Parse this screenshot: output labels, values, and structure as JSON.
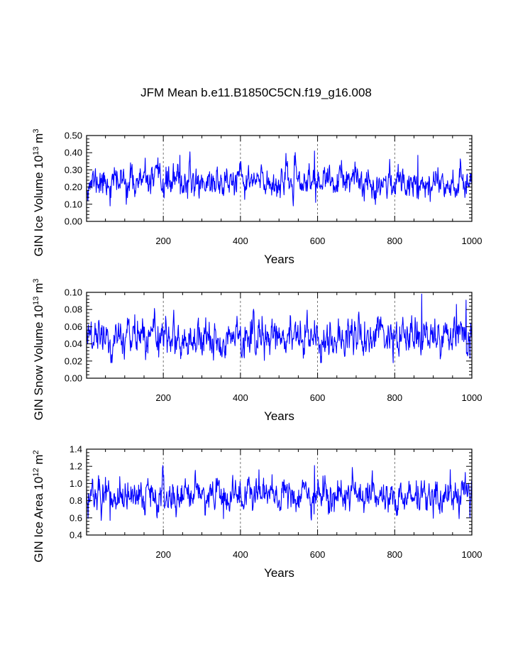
{
  "figure": {
    "title": "JFM Mean b.e11.B1850C5CN.f19_g16.008"
  },
  "chart_data": [
    {
      "type": "line",
      "title": "",
      "xlabel": "Years",
      "ylabel": "GIN Ice Volume 10",
      "ylabel_sup1": "13",
      "ylabel_mid": " m",
      "ylabel_sup2": "3",
      "xlim": [
        1,
        1000
      ],
      "ylim": [
        0.0,
        0.5
      ],
      "x_ticks": [
        200,
        400,
        600,
        800,
        1000
      ],
      "x_tick_labels": [
        "200",
        "400",
        "600",
        "800",
        "1000"
      ],
      "y_ticks": [
        0.0,
        0.1,
        0.2,
        0.3,
        0.4,
        0.5
      ],
      "y_tick_labels": [
        "0.00",
        "0.10",
        "0.20",
        "0.30",
        "0.40",
        "0.50"
      ],
      "grid_x": [
        200,
        400,
        600,
        800
      ],
      "series": [
        {
          "name": "GIN Ice Volume",
          "color": "#0000ff",
          "mean": 0.23,
          "std": 0.045,
          "min": 0.09,
          "max": 0.41,
          "seed": 11,
          "peaks": [
            [
              592,
              0.41
            ],
            [
              243,
              0.385
            ],
            [
              860,
              0.385
            ],
            [
              62,
              0.09
            ],
            [
              537,
              0.09
            ]
          ]
        }
      ]
    },
    {
      "type": "line",
      "title": "",
      "xlabel": "Years",
      "ylabel": "GIN Snow Volume 10",
      "ylabel_sup1": "13",
      "ylabel_mid": " m",
      "ylabel_sup2": "3",
      "xlim": [
        1,
        1000
      ],
      "ylim": [
        0.0,
        0.1
      ],
      "x_ticks": [
        200,
        400,
        600,
        800,
        1000
      ],
      "x_tick_labels": [
        "200",
        "400",
        "600",
        "800",
        "1000"
      ],
      "y_ticks": [
        0.0,
        0.02,
        0.04,
        0.06,
        0.08,
        0.1
      ],
      "y_tick_labels": [
        "0.00",
        "0.02",
        "0.04",
        "0.06",
        "0.08",
        "0.10"
      ],
      "grid_x": [
        200,
        400,
        600,
        800
      ],
      "series": [
        {
          "name": "GIN Snow Volume",
          "color": "#0000ff",
          "mean": 0.048,
          "std": 0.011,
          "min": 0.018,
          "max": 0.098,
          "seed": 29,
          "peaks": [
            [
              870,
              0.098
            ],
            [
              985,
              0.091
            ],
            [
              796,
              0.018
            ],
            [
              960,
              0.086
            ]
          ]
        }
      ]
    },
    {
      "type": "line",
      "title": "",
      "xlabel": "Years",
      "ylabel": "GIN Ice Area 10",
      "ylabel_sup1": "12",
      "ylabel_mid": " m",
      "ylabel_sup2": "2",
      "xlim": [
        1,
        1000
      ],
      "ylim": [
        0.4,
        1.4
      ],
      "x_ticks": [
        200,
        400,
        600,
        800,
        1000
      ],
      "x_tick_labels": [
        "200",
        "400",
        "600",
        "800",
        "1000"
      ],
      "y_ticks": [
        0.4,
        0.6,
        0.8,
        1.0,
        1.2,
        1.4
      ],
      "y_tick_labels": [
        "0.4",
        "0.6",
        "0.8",
        "1.0",
        "1.2",
        "1.4"
      ],
      "grid_x": [
        200,
        400,
        600,
        800
      ],
      "series": [
        {
          "name": "GIN Ice Area",
          "color": "#0000ff",
          "mean": 0.86,
          "std": 0.1,
          "min": 0.57,
          "max": 1.21,
          "seed": 47,
          "peaks": [
            [
              592,
              1.21
            ],
            [
              742,
              1.15
            ],
            [
              448,
              1.16
            ],
            [
              62,
              0.57
            ],
            [
              356,
              0.59
            ]
          ]
        }
      ]
    }
  ]
}
